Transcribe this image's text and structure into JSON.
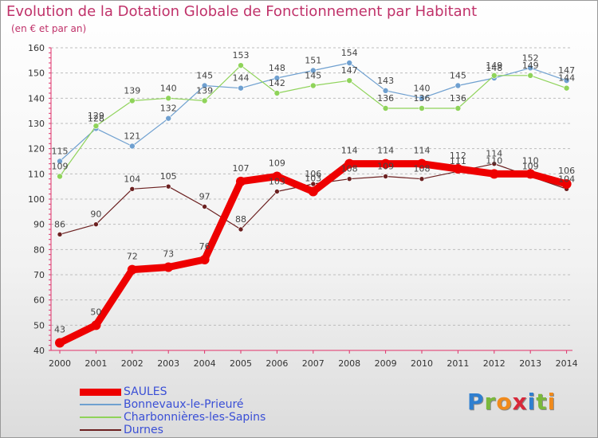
{
  "title": "Evolution de la Dotation Globale de Fonctionnement par Habitant",
  "subtitle": "(en € et par an)",
  "brand": "Proxiti",
  "chart_data": {
    "type": "line",
    "title": "Evolution de la Dotation Globale de Fonctionnement par Habitant",
    "ylabel": "(en € et par an)",
    "xlabel": "",
    "x": [
      2000,
      2001,
      2002,
      2003,
      2004,
      2005,
      2006,
      2007,
      2008,
      2009,
      2010,
      2011,
      2012,
      2013,
      2014
    ],
    "ylim": [
      40,
      160
    ],
    "yticks": [
      40,
      50,
      60,
      70,
      80,
      90,
      100,
      110,
      120,
      130,
      140,
      150,
      160
    ],
    "grid": "horizontal dashed",
    "legend": "bottom-left",
    "series": [
      {
        "name": "SAULES",
        "color": "#ee0000",
        "values": [
          43,
          50,
          72,
          73,
          76,
          107,
          109,
          103,
          114,
          114,
          114,
          112,
          110,
          110,
          106
        ],
        "labels": [
          "43",
          "50",
          "72",
          "73",
          "76",
          "107",
          "109",
          "103",
          "114",
          "114",
          "114",
          "112",
          "110",
          "110",
          "106"
        ]
      },
      {
        "name": "Bonnevaux-le-Prieuré",
        "color": "#6fa0d0",
        "values": [
          115,
          128,
          121,
          132,
          145,
          144,
          148,
          151,
          154,
          143,
          140,
          145,
          148,
          152,
          147
        ],
        "labels": [
          "115",
          "128",
          "121",
          "132",
          "145",
          "144",
          "148",
          "151",
          "154",
          "143",
          "140",
          "145",
          "148",
          "152",
          "147"
        ]
      },
      {
        "name": "Charbonnières-les-Sapins",
        "color": "#8fd35a",
        "values": [
          109,
          129,
          139,
          140,
          139,
          153,
          142,
          145,
          147,
          136,
          136,
          136,
          149,
          149,
          144
        ],
        "labels": [
          "109",
          "129",
          "139",
          "140",
          "139",
          "153",
          "142",
          "145",
          "147",
          "136",
          "136",
          "136",
          "149",
          "149",
          "144"
        ]
      },
      {
        "name": "Durnes",
        "color": "#6b2020",
        "values": [
          86,
          90,
          104,
          105,
          97,
          88,
          103,
          106,
          108,
          109,
          108,
          111,
          114,
          109,
          104
        ],
        "labels": [
          "86",
          "90",
          "104",
          "105",
          "97",
          "88",
          "103",
          "106",
          "108",
          "109",
          "108",
          "111",
          "114",
          "109",
          "104"
        ]
      }
    ]
  }
}
